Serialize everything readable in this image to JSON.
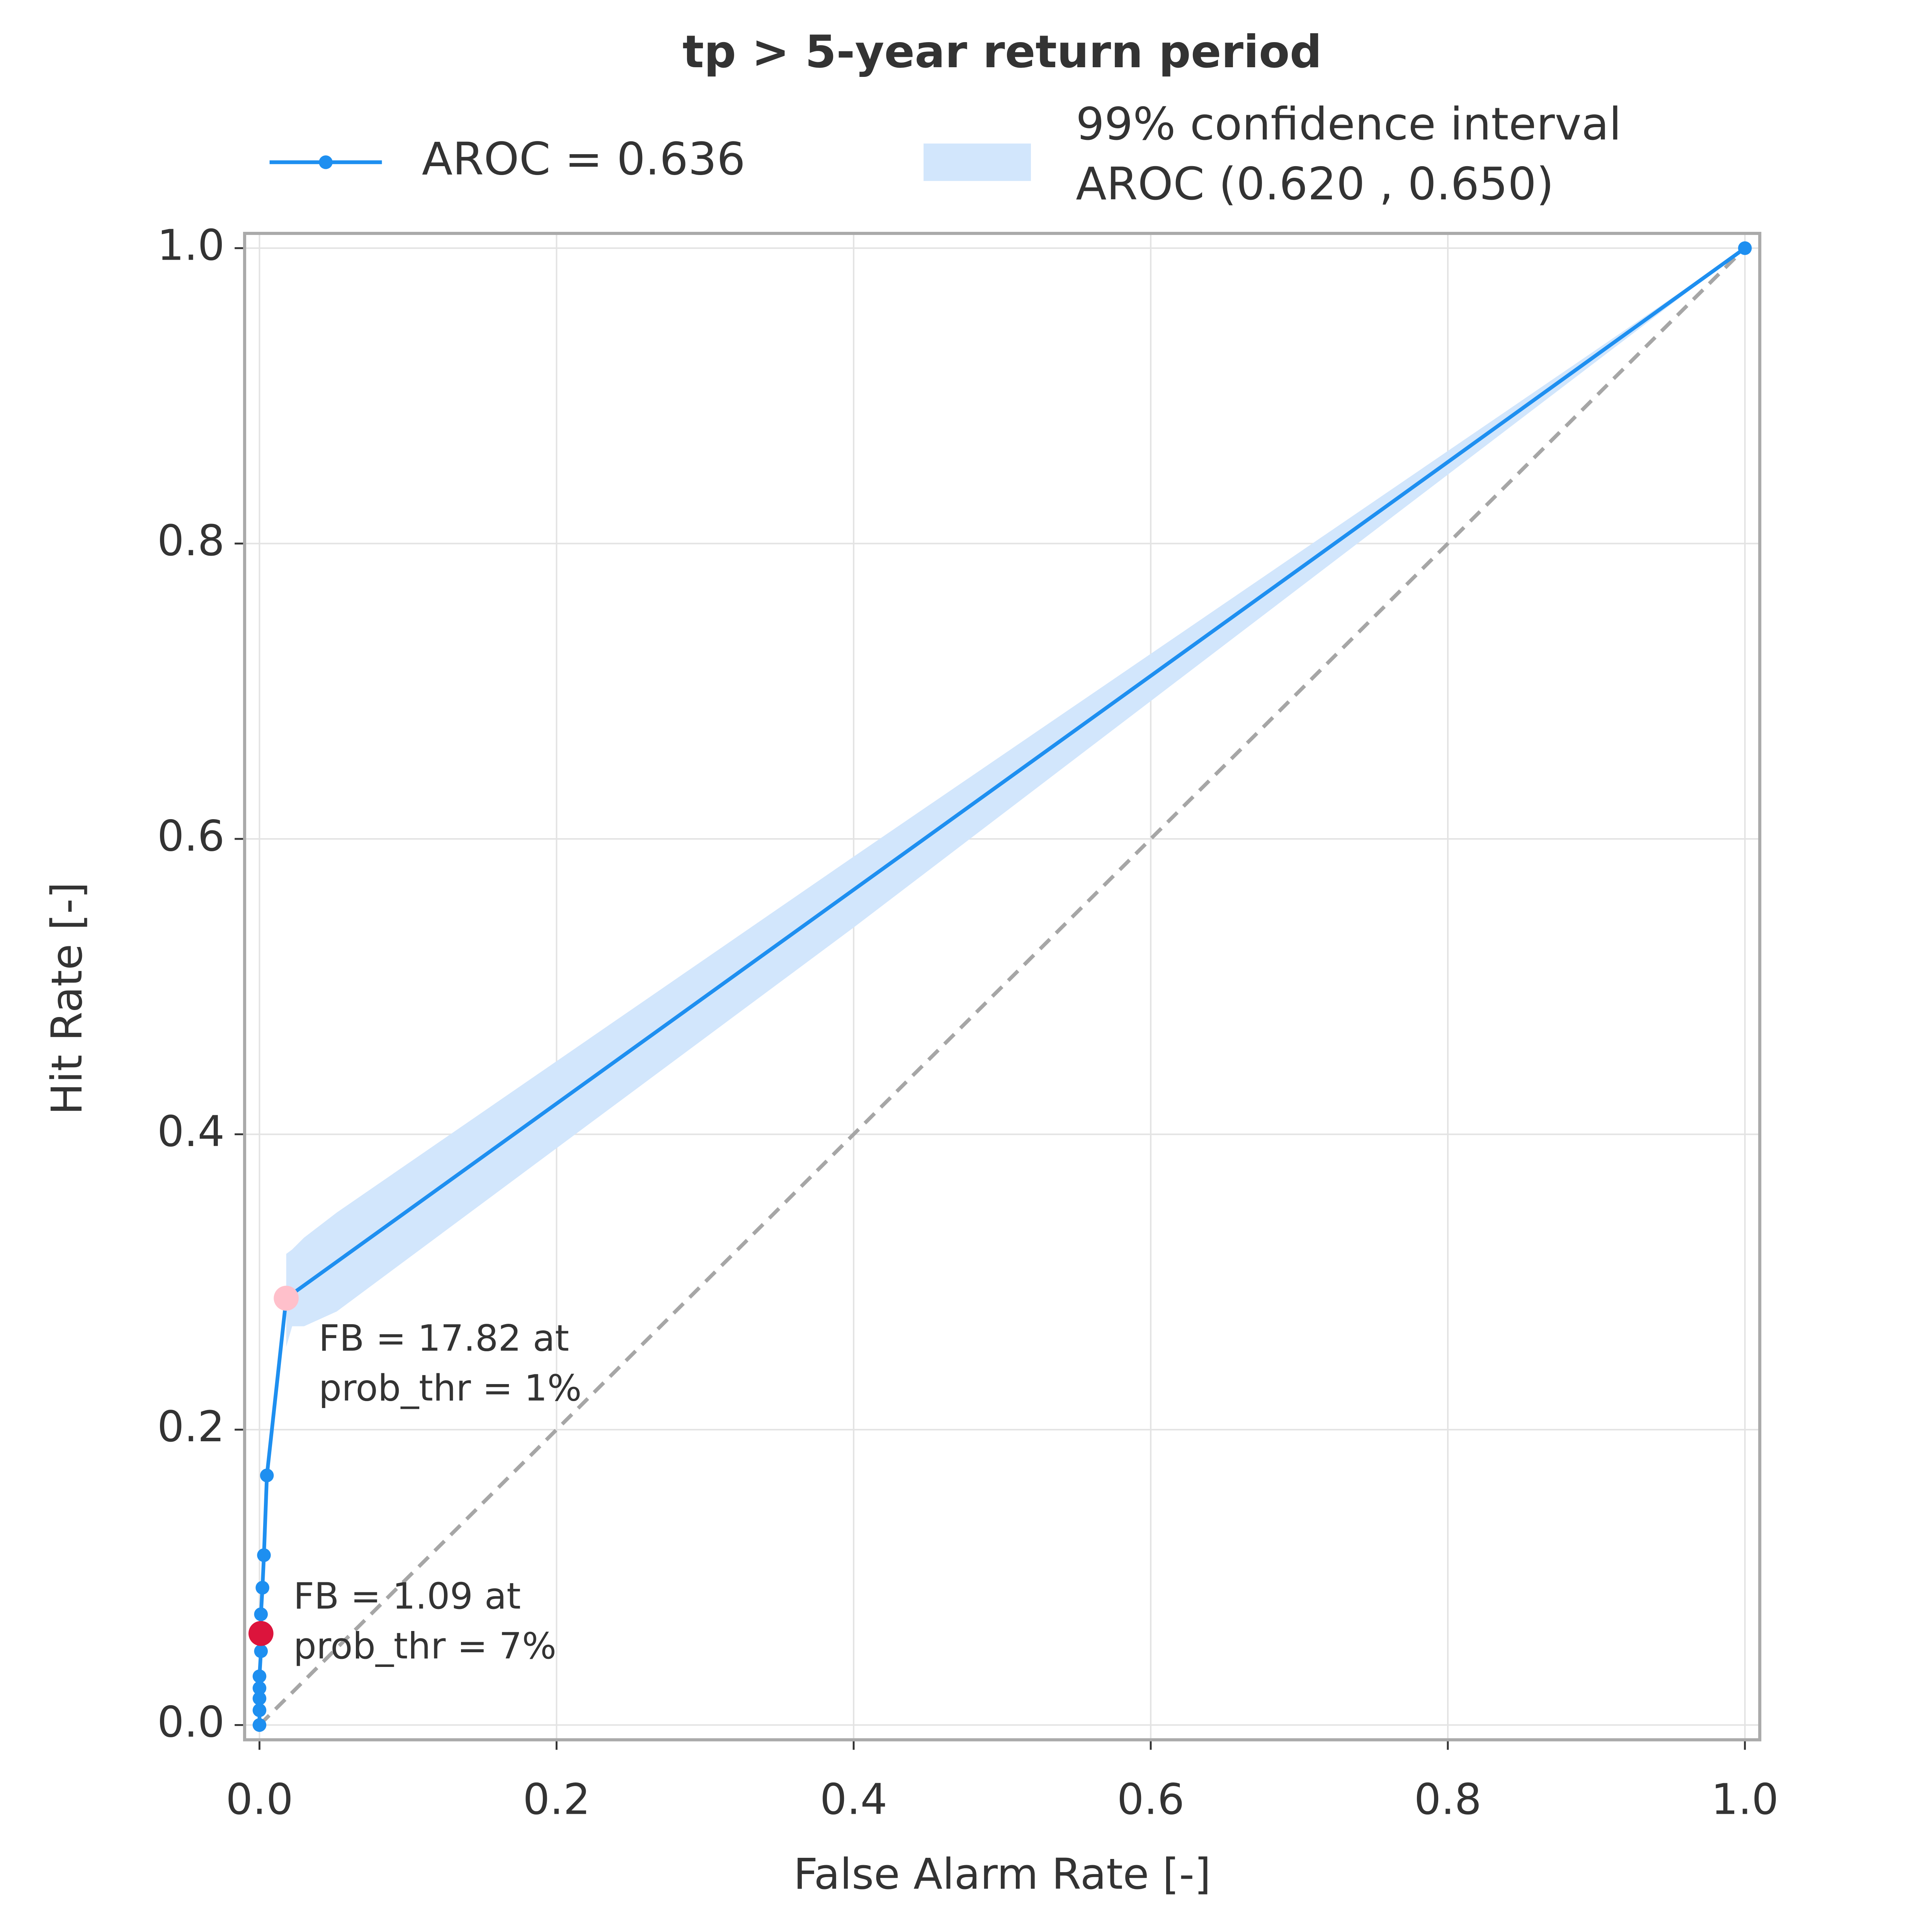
{
  "chart_data": {
    "type": "line",
    "title": "tp > 5-year return period",
    "xlabel": "False Alarm Rate [-]",
    "ylabel": "Hit Rate [-]",
    "x": [
      0,
      0,
      0,
      0,
      0,
      0.001,
      0.001,
      0.001,
      0.002,
      0.003,
      0.005,
      0.018,
      1
    ],
    "series": [
      {
        "name": "AROC = 0.636",
        "color": "#1e8ff0",
        "values": [
          0,
          0.01,
          0.018,
          0.025,
          0.033,
          0.05,
          0.062,
          0.075,
          0.093,
          0.115,
          0.169,
          0.289,
          1
        ]
      }
    ],
    "band": {
      "label": [
        "99% confidence interval",
        "AROC (0.620 , 0.650)"
      ],
      "color": "#d2e6fc",
      "x": [
        0.018,
        0.022,
        0.03,
        0.052,
        0.4,
        1
      ],
      "upper": [
        0.319,
        0.322,
        0.33,
        0.347,
        0.588,
        1
      ],
      "lower": [
        0.256,
        0.27,
        0.27,
        0.28,
        0.54,
        1
      ]
    },
    "highlights": [
      {
        "x": 0.018,
        "y": 0.289,
        "color": "#ffc0cb",
        "label": [
          "FB = 17.82 at",
          "prob_thr = 1%"
        ]
      },
      {
        "x": 0.001,
        "y": 0.062,
        "color": "#dc143c",
        "label": [
          "FB = 1.09 at",
          "prob_thr = 7%"
        ]
      }
    ],
    "reference": {
      "x": [
        0,
        1
      ],
      "y": [
        0,
        1
      ],
      "color": "#a6a6a6"
    },
    "xlim": [
      -0.01,
      1.01
    ],
    "ylim": [
      -0.01,
      1.01
    ],
    "xticks": [
      {
        "value": 0,
        "label": "0.0"
      },
      0.2,
      0.4,
      0.6,
      0.8,
      {
        "value": 1,
        "label": "1.0"
      }
    ],
    "yticks": [
      {
        "value": 0,
        "label": "0.0"
      },
      0.2,
      0.4,
      0.6,
      0.8,
      {
        "value": 1,
        "label": "1.0"
      }
    ],
    "grid": true
  }
}
